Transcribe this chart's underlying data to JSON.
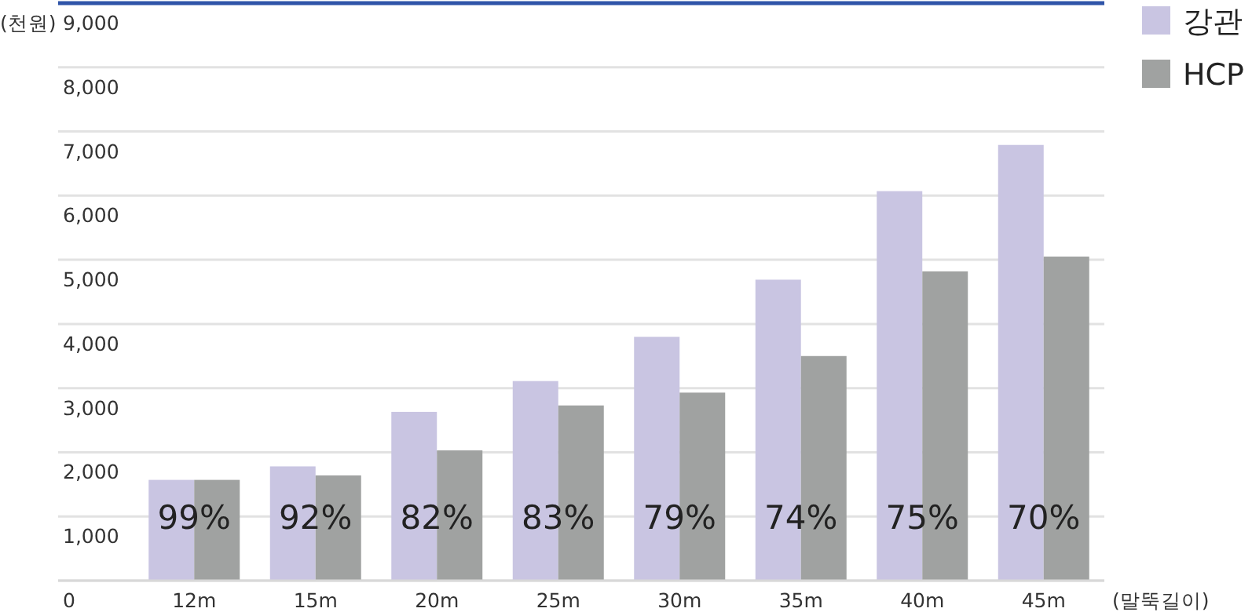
{
  "chart_data": {
    "type": "bar",
    "ylabel": "(천원)",
    "xlabel": "(말뚝길이)",
    "categories": [
      "12m",
      "15m",
      "20m",
      "25m",
      "30m",
      "35m",
      "40m",
      "45m"
    ],
    "series": [
      {
        "name": "강관",
        "color": "#c9c5e2",
        "values": [
          1570,
          1780,
          2630,
          3110,
          3800,
          4690,
          6070,
          6790
        ]
      },
      {
        "name": "HCP",
        "color": "#a0a2a1",
        "values": [
          1570,
          1640,
          2030,
          2730,
          2930,
          3500,
          4820,
          5050
        ]
      }
    ],
    "ylim": [
      0,
      9000
    ],
    "yticks": [
      {
        "value": 0,
        "label": "0"
      },
      {
        "value": 1000,
        "label": "1,000"
      },
      {
        "value": 2000,
        "label": "2,000"
      },
      {
        "value": 3000,
        "label": "3,000"
      },
      {
        "value": 4000,
        "label": "4,000"
      },
      {
        "value": 5000,
        "label": "5,000"
      },
      {
        "value": 6000,
        "label": "6,000"
      },
      {
        "value": 7000,
        "label": "7,000"
      },
      {
        "value": 8000,
        "label": "8,000"
      },
      {
        "value": 9000,
        "label": "9,000"
      }
    ],
    "grid": "y",
    "legend": "top right",
    "annotations": [
      {
        "text": "99%",
        "x": "12m",
        "y": 1000
      },
      {
        "text": "92%",
        "x": "15m",
        "y": 1000
      },
      {
        "text": "82%",
        "x": "20m",
        "y": 1000
      },
      {
        "text": "83%",
        "x": "25m",
        "y": 1000
      },
      {
        "text": "79%",
        "x": "30m",
        "y": 1000
      },
      {
        "text": "74%",
        "x": "35m",
        "y": 1000
      },
      {
        "text": "75%",
        "x": "40m",
        "y": 1000
      },
      {
        "text": "70%",
        "x": "45m",
        "y": 1000
      }
    ]
  }
}
